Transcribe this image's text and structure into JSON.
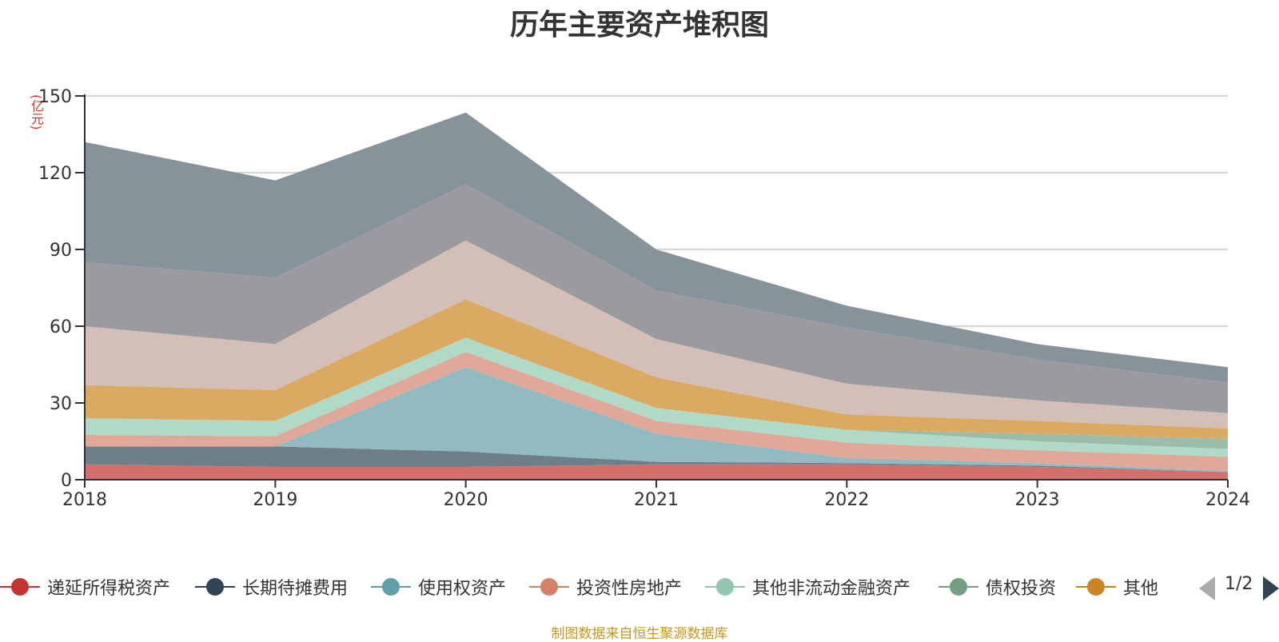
{
  "chart": {
    "title": "历年主要资产堆积图",
    "unit_label": "(亿元)",
    "source_note": "制图数据来自恒生聚源数据库"
  },
  "legend": {
    "items": [
      {
        "label": "递延所得税资产",
        "color": "#c23531"
      },
      {
        "label": "长期待摊费用",
        "color": "#2f4554"
      },
      {
        "label": "使用权资产",
        "color": "#61a0a8"
      },
      {
        "label": "投资性房地产",
        "color": "#d48265"
      },
      {
        "label": "其他非流动金融资产",
        "color": "#91c7ae"
      },
      {
        "label": "债权投资",
        "color": "#749f83"
      },
      {
        "label": "其他",
        "color": "#ca8622"
      }
    ],
    "page_text": "1/2",
    "prev_icon": "triangle-left-icon",
    "next_icon": "triangle-right-icon"
  },
  "chart_data": {
    "type": "area",
    "stacked": true,
    "title": "历年主要资产堆积图",
    "ylabel": "(亿元)",
    "x": [
      "2018",
      "2019",
      "2020",
      "2021",
      "2022",
      "2023",
      "2024"
    ],
    "ylim": [
      0,
      150
    ],
    "yticks": [
      0,
      30,
      60,
      90,
      120,
      150
    ],
    "grid": true,
    "legend_position": "bottom",
    "series": [
      {
        "name": "递延所得税资产",
        "color": "#d4706c",
        "values": [
          6,
          5,
          5,
          6,
          6,
          5,
          3
        ]
      },
      {
        "name": "长期待摊费用",
        "color": "#6e7f8a",
        "values": [
          7,
          8,
          6,
          1,
          0.5,
          0.5,
          0
        ]
      },
      {
        "name": "使用权资产",
        "color": "#91bbc1",
        "values": [
          0,
          0,
          33,
          11,
          2,
          1,
          0.5
        ]
      },
      {
        "name": "投资性房地产",
        "color": "#e0a898",
        "values": [
          4.5,
          4,
          6,
          5,
          6,
          5,
          5.5
        ]
      },
      {
        "name": "其他非流动金融资产",
        "color": "#b0d9c8",
        "values": [
          6.5,
          6,
          5.5,
          5,
          5,
          3.5,
          3
        ]
      },
      {
        "name": "债权投资",
        "color": "#9cbcaa",
        "values": [
          0,
          0,
          0,
          0,
          0,
          3,
          4
        ]
      },
      {
        "name": "其他",
        "color": "#dbaa62",
        "values": [
          13,
          12,
          15,
          12,
          6,
          5,
          4
        ]
      },
      {
        "name": "",
        "color": "#d3beb8",
        "values": [
          23,
          18,
          23,
          15,
          12,
          8,
          6
        ]
      },
      {
        "name": "",
        "color": "#9b9b9f",
        "values": [
          25,
          26,
          22,
          19,
          22,
          16,
          12
        ]
      },
      {
        "name": "",
        "color": "#86939b",
        "values": [
          47,
          38,
          28,
          16,
          8.5,
          6,
          6
        ]
      }
    ]
  }
}
